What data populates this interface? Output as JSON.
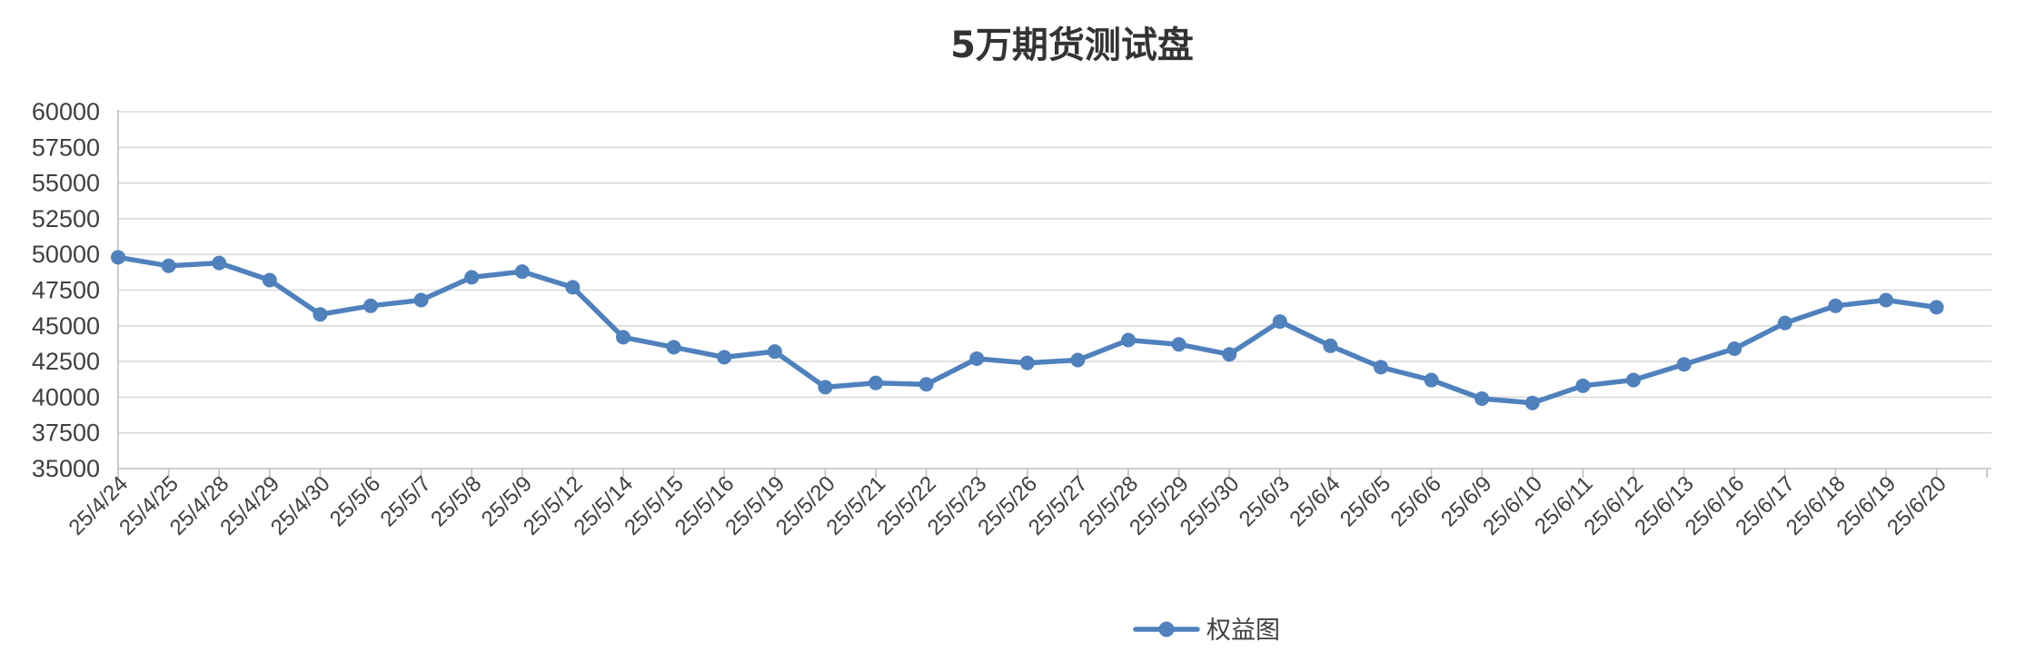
{
  "chart_data": {
    "type": "line",
    "title": "5万期货测试盘",
    "xlabel": "",
    "ylabel": "",
    "ylim": [
      35000,
      60000
    ],
    "yticks": [
      35000,
      37500,
      40000,
      42500,
      45000,
      47500,
      50000,
      52500,
      55000,
      57500,
      60000
    ],
    "grid": true,
    "legend_position": "bottom",
    "categories": [
      "25/4/24",
      "25/4/25",
      "25/4/28",
      "25/4/29",
      "25/4/30",
      "25/5/6",
      "25/5/7",
      "25/5/8",
      "25/5/9",
      "25/5/12",
      "25/5/14",
      "25/5/15",
      "25/5/16",
      "25/5/19",
      "25/5/20",
      "25/5/21",
      "25/5/22",
      "25/5/23",
      "25/5/26",
      "25/5/27",
      "25/5/28",
      "25/5/29",
      "25/5/30",
      "25/6/3",
      "25/6/4",
      "25/6/5",
      "25/6/6",
      "25/6/9",
      "25/6/10",
      "25/6/11",
      "25/6/12",
      "25/6/13",
      "25/6/16",
      "25/6/17",
      "25/6/18",
      "25/6/19",
      "25/6/20"
    ],
    "series": [
      {
        "name": "权益图",
        "color": "#4f81bd",
        "values": [
          49800,
          49200,
          49400,
          48200,
          45800,
          46400,
          46800,
          48400,
          48800,
          47700,
          44200,
          43500,
          42800,
          43200,
          40700,
          41000,
          40900,
          42700,
          42400,
          42600,
          44000,
          43700,
          43000,
          45300,
          43600,
          42100,
          41200,
          39900,
          39600,
          40800,
          41200,
          42300,
          43400,
          45200,
          46400,
          46800,
          46300
        ]
      }
    ]
  }
}
